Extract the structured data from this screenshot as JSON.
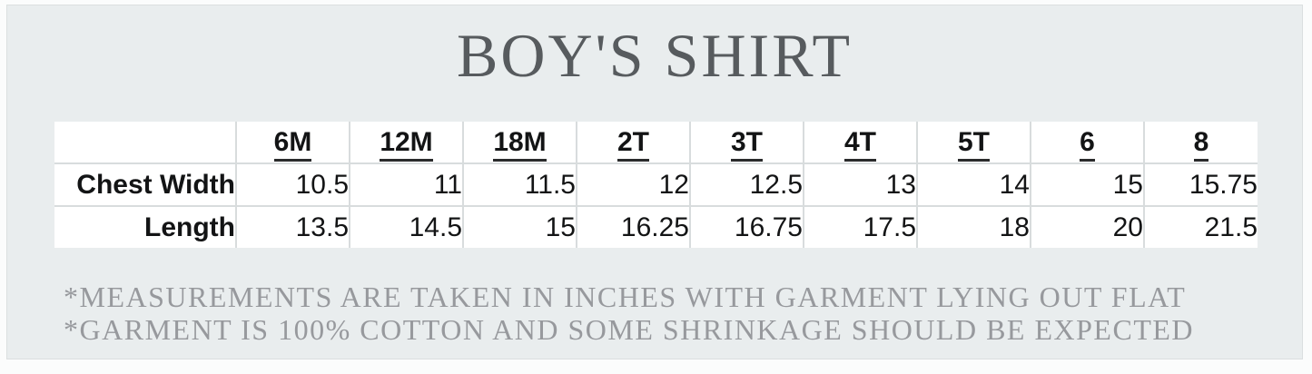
{
  "title": "BOY'S SHIRT",
  "notes": {
    "line1": "*MEASUREMENTS ARE TAKEN IN INCHES WITH GARMENT LYING OUT FLAT",
    "line2": "*GARMENT IS 100% COTTON AND SOME SHRINKAGE SHOULD BE EXPECTED"
  },
  "chart_data": {
    "type": "table",
    "title": "BOY'S SHIRT",
    "units": "inches",
    "columns": [
      "",
      "6M",
      "12M",
      "18M",
      "2T",
      "3T",
      "4T",
      "5T",
      "6",
      "8"
    ],
    "rows": [
      {
        "label": "Chest Width",
        "values": [
          10.5,
          11,
          11.5,
          12,
          12.5,
          13,
          14,
          15,
          15.75
        ]
      },
      {
        "label": "Length",
        "values": [
          13.5,
          14.5,
          15,
          16.25,
          16.75,
          17.5,
          18,
          20,
          21.5
        ]
      }
    ]
  },
  "colors": {
    "panel_background": "#e9edee",
    "panel_border": "#dbdfe0",
    "page_background": "#fbfcfc",
    "table_cell_background": "#ffffff",
    "table_border": "#d8dcdd",
    "title_text": "#575b5e",
    "note_text": "#97999d",
    "table_text": "#131415",
    "header_underline": "#2a2b2c"
  }
}
